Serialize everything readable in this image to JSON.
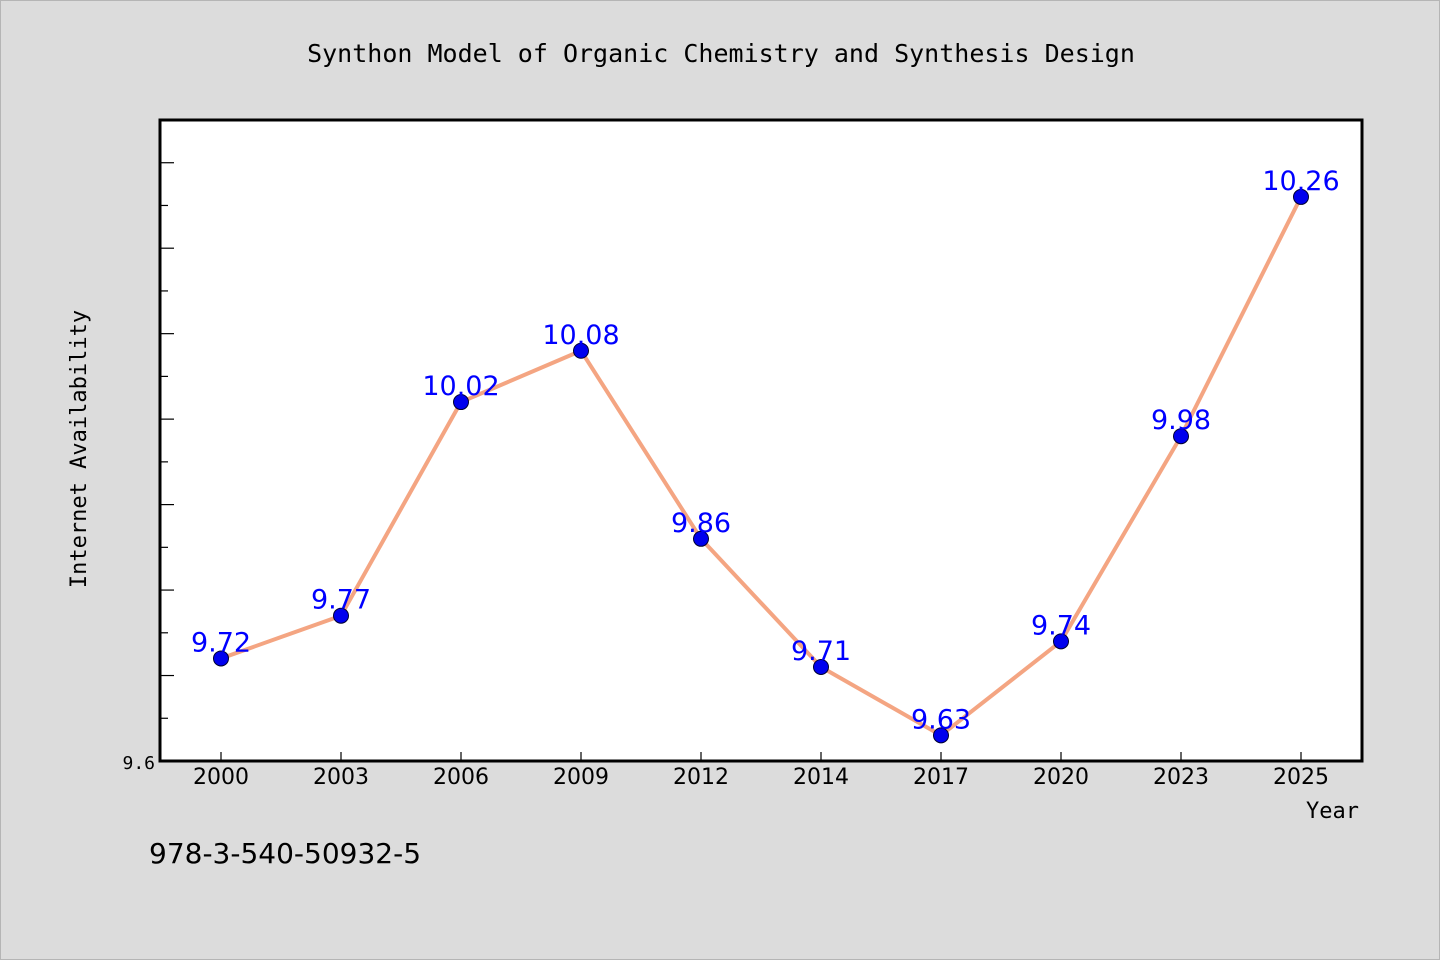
{
  "chart_data": {
    "type": "line",
    "title": "Synthon Model of Organic Chemistry and Synthesis Design",
    "xlabel": "Year",
    "ylabel": "Internet Availability",
    "categories": [
      "2000",
      "2003",
      "2006",
      "2009",
      "2012",
      "2014",
      "2017",
      "2020",
      "2023",
      "2025"
    ],
    "series": [
      {
        "values": [
          9.72,
          9.77,
          10.02,
          10.08,
          9.86,
          9.71,
          9.63,
          9.74,
          9.98,
          10.26
        ]
      }
    ],
    "data_labels": [
      "9.72",
      "9.77",
      "10.02",
      "10.08",
      "9.86",
      "9.71",
      "9.63",
      "9.74",
      "9.98",
      "10.26"
    ],
    "ylim": [
      9.6,
      10.35
    ],
    "y_tick_label": "9.6",
    "grid": false,
    "line_color": "#f4a582",
    "marker_color": "#0000ee",
    "label_color": "#0000ff"
  },
  "footer": {
    "isbn": "978-3-540-50932-5"
  }
}
